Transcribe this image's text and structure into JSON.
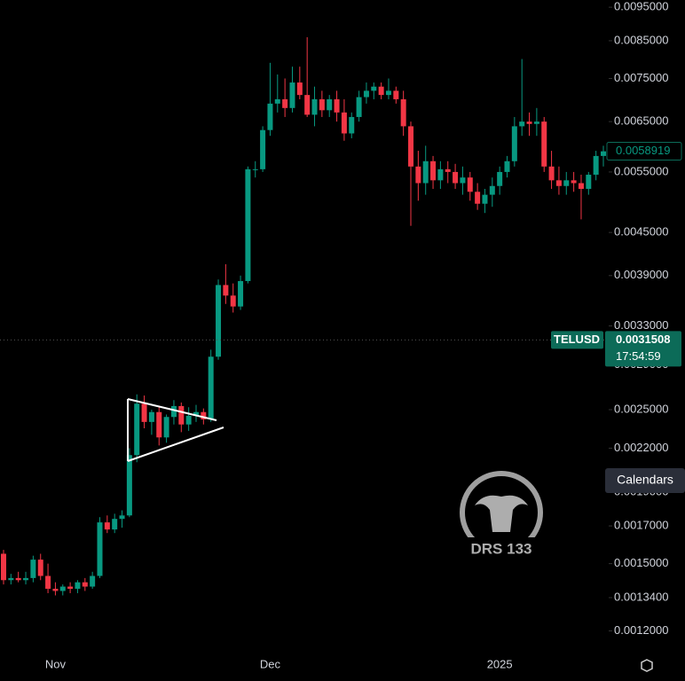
{
  "chart_data": {
    "type": "candlestick",
    "symbol": "TELUSD",
    "log_scale": true,
    "up_color": "#089981",
    "down_color": "#f23645",
    "x": [
      null,
      null,
      null,
      null,
      null,
      null,
      null,
      "Nov",
      null,
      null,
      null,
      null,
      null,
      null,
      null,
      null,
      null,
      null,
      null,
      null,
      null,
      null,
      null,
      null,
      null,
      null,
      null,
      null,
      null,
      null,
      null,
      null,
      null,
      null,
      null,
      null,
      "Dec",
      null,
      null,
      null,
      null,
      null,
      null,
      null,
      null,
      null,
      null,
      null,
      null,
      null,
      null,
      null,
      null,
      null,
      null,
      null,
      null,
      null,
      null,
      null,
      null,
      null,
      null,
      null,
      null,
      null,
      null,
      "2025",
      null,
      null,
      null,
      null,
      null,
      null,
      null,
      null,
      null,
      null,
      null,
      null,
      null,
      null
    ],
    "open": [
      0.00155,
      0.00142,
      0.00143,
      0.00142,
      0.00143,
      0.00152,
      0.00144,
      0.00138,
      0.00137,
      0.00139,
      0.00138,
      0.00141,
      0.00139,
      0.00144,
      0.00172,
      0.00168,
      0.00174,
      0.00176,
      0.00215,
      0.00255,
      0.0024,
      0.00248,
      0.00228,
      0.00244,
      0.00253,
      0.00238,
      0.00245,
      0.00248,
      0.00242,
      0.00298,
      0.00378,
      0.00365,
      0.00352,
      0.00383,
      0.00555,
      0.00555,
      0.00632,
      0.0069,
      0.007,
      0.0068,
      0.0074,
      0.0071,
      0.00665,
      0.007,
      0.00675,
      0.007,
      0.0067,
      0.00625,
      0.0066,
      0.00705,
      0.0072,
      0.0073,
      0.0071,
      0.0072,
      0.007,
      0.0064,
      0.0056,
      0.0053,
      0.0057,
      0.00535,
      0.00555,
      0.0055,
      0.0053,
      0.0054,
      0.00515,
      0.00495,
      0.0051,
      0.00525,
      0.0055,
      0.0057,
      0.0064,
      0.0065,
      0.00645,
      0.0065,
      0.0056,
      0.00535,
      0.00525,
      0.00535,
      0.0053,
      0.0052,
      0.00545,
      0.0058
    ],
    "high": [
      0.00157,
      0.00145,
      0.00146,
      0.00146,
      0.00154,
      0.00155,
      0.0015,
      0.00141,
      0.0014,
      0.00141,
      0.00142,
      0.00143,
      0.00146,
      0.00175,
      0.00176,
      0.00177,
      0.00179,
      0.0022,
      0.00263,
      0.00262,
      0.0025,
      0.00252,
      0.00246,
      0.00258,
      0.00256,
      0.00252,
      0.00254,
      0.00251,
      0.00305,
      0.00385,
      0.00405,
      0.0038,
      0.0039,
      0.0056,
      0.0057,
      0.0064,
      0.0079,
      0.0076,
      0.0075,
      0.0078,
      0.0078,
      0.0086,
      0.0073,
      0.0072,
      0.0071,
      0.0072,
      0.007,
      0.0067,
      0.0072,
      0.0074,
      0.0074,
      0.0074,
      0.0075,
      0.0073,
      0.0072,
      0.0065,
      0.0059,
      0.006,
      0.0058,
      0.0057,
      0.0057,
      0.00565,
      0.0056,
      0.0055,
      0.0053,
      0.0052,
      0.0054,
      0.0056,
      0.0058,
      0.0066,
      0.008,
      0.0067,
      0.0068,
      0.0066,
      0.0059,
      0.0056,
      0.0055,
      0.0055,
      0.00545,
      0.0055,
      0.0059,
      0.006
    ],
    "low": [
      0.0014,
      0.0014,
      0.00141,
      0.0014,
      0.00141,
      0.00142,
      0.00136,
      0.00135,
      0.00135,
      0.00136,
      0.00136,
      0.00137,
      0.00138,
      0.00143,
      0.00166,
      0.00166,
      0.00169,
      0.00175,
      0.0021,
      0.00235,
      0.0023,
      0.00222,
      0.00224,
      0.00238,
      0.00232,
      0.00233,
      0.0024,
      0.00238,
      0.0024,
      0.00295,
      0.00355,
      0.00345,
      0.00348,
      0.0038,
      0.0054,
      0.0055,
      0.0062,
      0.0067,
      0.0066,
      0.0067,
      0.007,
      0.0066,
      0.0064,
      0.0066,
      0.0066,
      0.0065,
      0.0061,
      0.00615,
      0.0065,
      0.0069,
      0.007,
      0.007,
      0.007,
      0.0069,
      0.0062,
      0.0046,
      0.005,
      0.0051,
      0.0052,
      0.0052,
      0.0053,
      0.0052,
      0.0051,
      0.005,
      0.00485,
      0.0048,
      0.0049,
      0.0051,
      0.0054,
      0.0056,
      0.0062,
      0.0062,
      0.0062,
      0.0055,
      0.0052,
      0.0051,
      0.0051,
      0.00515,
      0.0047,
      0.0051,
      0.00535,
      0.0056
    ],
    "close": [
      0.00142,
      0.00143,
      0.00142,
      0.00143,
      0.00152,
      0.00144,
      0.00138,
      0.00137,
      0.00139,
      0.00138,
      0.00141,
      0.00139,
      0.00144,
      0.00172,
      0.00168,
      0.00174,
      0.00176,
      0.00215,
      0.00255,
      0.0024,
      0.00248,
      0.00228,
      0.00244,
      0.00253,
      0.00238,
      0.00245,
      0.00248,
      0.00242,
      0.00298,
      0.00378,
      0.00365,
      0.00352,
      0.00383,
      0.00555,
      0.00555,
      0.00632,
      0.0069,
      0.007,
      0.0068,
      0.0074,
      0.0071,
      0.00665,
      0.007,
      0.00675,
      0.007,
      0.0067,
      0.00625,
      0.0066,
      0.00705,
      0.0072,
      0.0073,
      0.0071,
      0.0072,
      0.007,
      0.0064,
      0.0056,
      0.0053,
      0.0057,
      0.00535,
      0.00555,
      0.0055,
      0.0053,
      0.0054,
      0.00515,
      0.00495,
      0.0051,
      0.00525,
      0.0055,
      0.0057,
      0.0064,
      0.0065,
      0.00645,
      0.0065,
      0.0056,
      0.00535,
      0.00525,
      0.00535,
      0.0053,
      0.0052,
      0.00545,
      0.0058,
      0.00589
    ],
    "ylim": [
      0.00111,
      0.00973
    ],
    "yticks": [
      {
        "value": 0.0095,
        "label": "0.0095000"
      },
      {
        "value": 0.0085,
        "label": "0.0085000"
      },
      {
        "value": 0.0075,
        "label": "0.0075000"
      },
      {
        "value": 0.0065,
        "label": "0.0065000"
      },
      {
        "value": 0.0055,
        "label": "0.0055000"
      },
      {
        "value": 0.0045,
        "label": "0.0045000"
      },
      {
        "value": 0.0039,
        "label": "0.0039000"
      },
      {
        "value": 0.0033,
        "label": "0.0033000"
      },
      {
        "value": 0.0029,
        "label": "0.0029000"
      },
      {
        "value": 0.0025,
        "label": "0.0025000"
      },
      {
        "value": 0.0022,
        "label": "0.0022000"
      },
      {
        "value": 0.0019,
        "label": "0.0019000"
      },
      {
        "value": 0.0017,
        "label": "0.0017000"
      },
      {
        "value": 0.0015,
        "label": "0.0015000"
      },
      {
        "value": 0.00134,
        "label": "0.0013400"
      },
      {
        "value": 0.0012,
        "label": "0.0012000"
      }
    ],
    "last_price": {
      "value": 0.0058919,
      "label": "0.0058919"
    },
    "price_line": {
      "value": 0.0031508,
      "label": "0.0031508",
      "countdown": "17:54:59"
    },
    "button": "Calendars",
    "watermark": "DRS 133"
  }
}
